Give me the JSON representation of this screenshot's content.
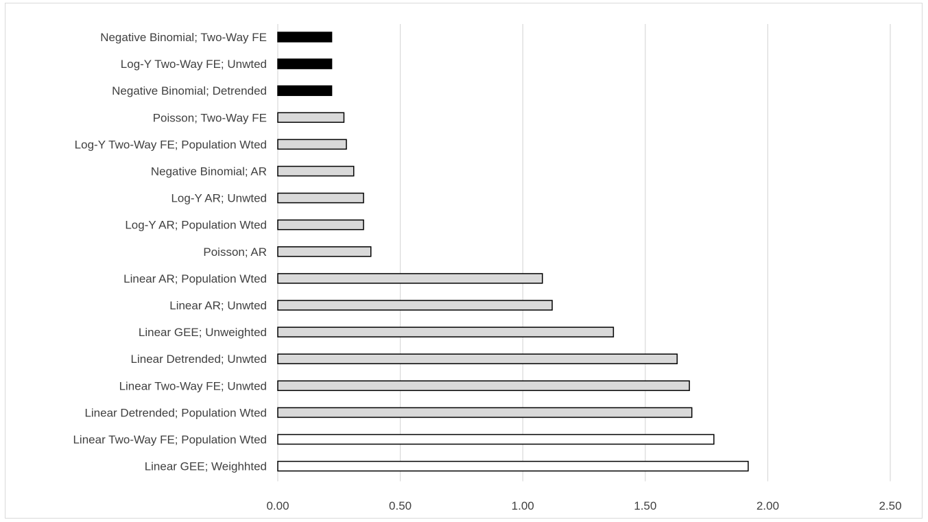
{
  "chart_data": {
    "type": "bar",
    "orientation": "horizontal",
    "title": "",
    "xlabel": "",
    "ylabel": "",
    "xlim": [
      0,
      2.5
    ],
    "x_ticks": [
      "0.00",
      "0.50",
      "1.00",
      "1.50",
      "2.00",
      "2.50"
    ],
    "grid": "vertical",
    "legend": "none",
    "colors": {
      "black": "#000000",
      "gray": "#d9d9d9",
      "white": "#ffffff",
      "outline": "#000000",
      "grid": "#d9d9d9"
    },
    "categories": [
      "Negative Binomial; Two-Way FE",
      "Log-Y Two-Way FE; Unwted",
      "Negative Binomial; Detrended",
      "Poisson; Two-Way FE",
      "Log-Y Two-Way FE; Population Wted",
      "Negative Binomial; AR",
      "Log-Y AR; Unwted",
      "Log-Y AR; Population Wted",
      "Poisson; AR",
      "Linear AR; Population Wted",
      "Linear AR; Unwted",
      "Linear GEE; Unweighted",
      "Linear Detrended; Unwted",
      "Linear Two-Way FE; Unwted",
      "Linear Detrended; Population Wted",
      "Linear Two-Way FE; Population Wted",
      "Linear GEE; Weighhted"
    ],
    "values": [
      0.22,
      0.22,
      0.22,
      0.27,
      0.28,
      0.31,
      0.35,
      0.35,
      0.38,
      1.08,
      1.12,
      1.37,
      1.63,
      1.68,
      1.69,
      1.78,
      1.92
    ],
    "bar_fills": [
      "black",
      "black",
      "black",
      "gray",
      "gray",
      "gray",
      "gray",
      "gray",
      "gray",
      "gray",
      "gray",
      "gray",
      "gray",
      "gray",
      "gray",
      "white",
      "white"
    ]
  }
}
